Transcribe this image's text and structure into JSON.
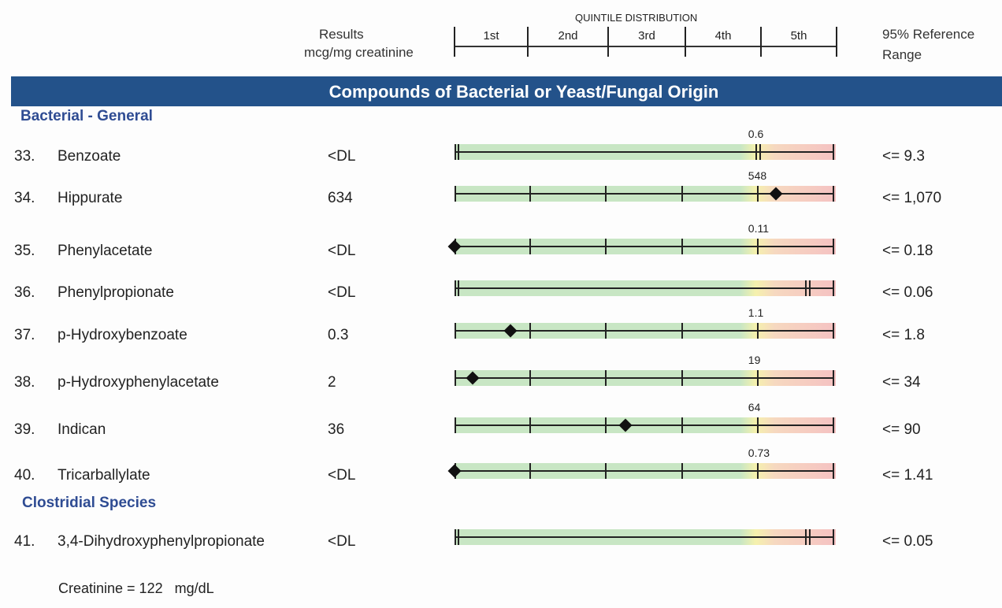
{
  "header": {
    "results_label": "Results",
    "units_label": "mcg/mg creatinine",
    "quintile_title": "QUINTILE DISTRIBUTION",
    "quintiles": [
      "1st",
      "2nd",
      "3rd",
      "4th",
      "5th"
    ],
    "reference_label_1": "95% Reference",
    "reference_label_2": "Range"
  },
  "banner": {
    "title": "Compounds of Bacterial or Yeast/Fungal Origin",
    "color": "#23528a"
  },
  "sections": [
    {
      "title": "Bacterial - General"
    },
    {
      "title": "Clostridial Species"
    }
  ],
  "colors": {
    "normal": "#c8e6c4",
    "borderline": "#f5f1ad",
    "high": "#f5c2c2"
  },
  "rows": [
    {
      "num": "33.",
      "name": "Benzoate",
      "result": "<DL",
      "cutoff": "0.6",
      "reference": "<= 9.3",
      "style": "dl",
      "cutoff_position": 0.8,
      "marker_position": null
    },
    {
      "num": "34.",
      "name": "Hippurate",
      "result": "634",
      "cutoff": "548",
      "reference": "<= 1,070",
      "style": "quintile",
      "marker_position": 0.848
    },
    {
      "num": "35.",
      "name": "Phenylacetate",
      "result": "<DL",
      "cutoff": "0.11",
      "reference": "<= 0.18",
      "style": "quintile",
      "marker_position": 0.0
    },
    {
      "num": "36.",
      "name": "Phenylpropionate",
      "result": "<DL",
      "cutoff": "",
      "reference": "<= 0.06",
      "style": "dl",
      "cutoff_position": 0.932,
      "marker_position": null
    },
    {
      "num": "37.",
      "name": "p-Hydroxybenzoate",
      "result": "0.3",
      "cutoff": "1.1",
      "reference": "<= 1.8",
      "style": "quintile",
      "marker_position": 0.148
    },
    {
      "num": "38.",
      "name": "p-Hydroxyphenylacetate",
      "result": "2",
      "cutoff": "19",
      "reference": "<= 34",
      "style": "quintile",
      "marker_position": 0.048
    },
    {
      "num": "39.",
      "name": "Indican",
      "result": "36",
      "cutoff": "64",
      "reference": "<= 90",
      "style": "quintile",
      "marker_position": 0.451
    },
    {
      "num": "40.",
      "name": "Tricarballylate",
      "result": "<DL",
      "cutoff": "0.73",
      "reference": "<= 1.41",
      "style": "quintile",
      "marker_position": 0.0
    },
    {
      "num": "41.",
      "name": "3,4-Dihydroxyphenylpropionate",
      "result": "<DL",
      "cutoff": "",
      "reference": "<= 0.05",
      "style": "dl",
      "cutoff_position": 0.932,
      "marker_position": null
    }
  ],
  "footer": {
    "creatinine": "Creatinine = 122   mg/dL"
  }
}
